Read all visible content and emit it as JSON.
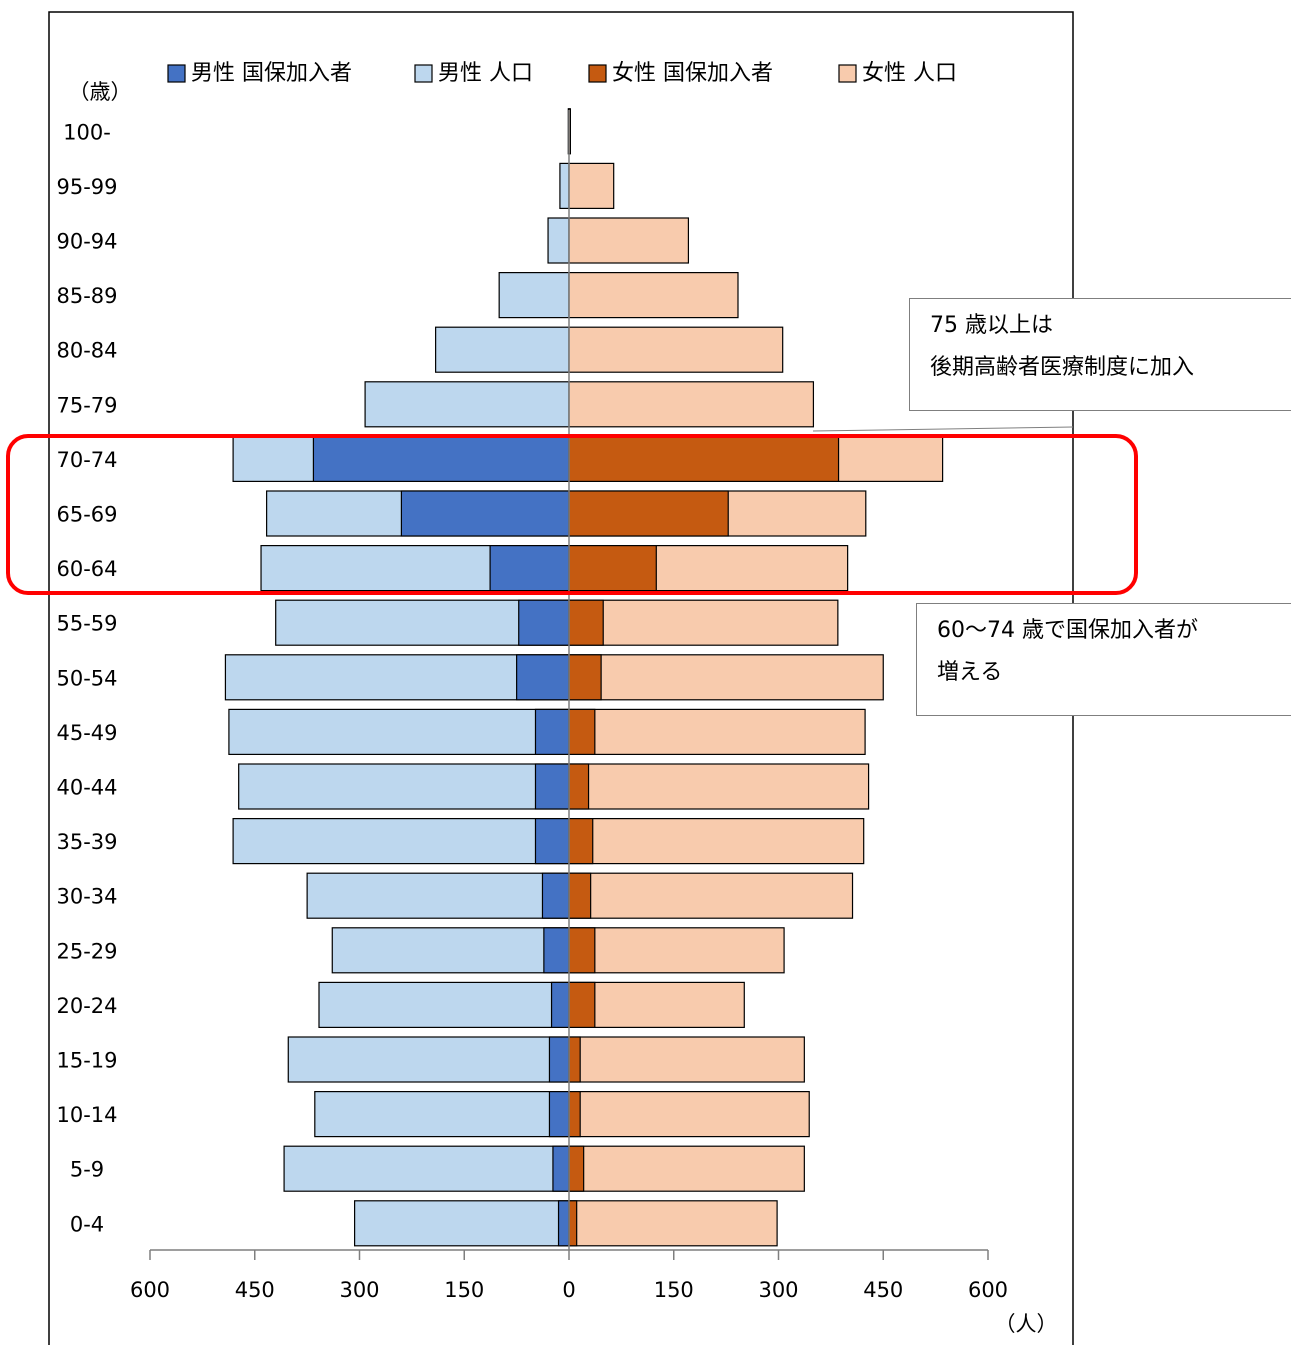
{
  "chart_data": {
    "type": "bar",
    "orientation": "horizontal-population-pyramid",
    "age_unit_label": "（歳）",
    "x_unit_label": "（人）",
    "categories": [
      "100-",
      "95-99",
      "90-94",
      "85-89",
      "80-84",
      "75-79",
      "70-74",
      "65-69",
      "60-64",
      "55-59",
      "50-54",
      "45-49",
      "40-44",
      "35-39",
      "30-34",
      "25-29",
      "20-24",
      "15-19",
      "10-14",
      "5-9",
      "0-4"
    ],
    "x_ticks": [
      "600",
      "450",
      "300",
      "150",
      "0",
      "150",
      "300",
      "450",
      "600"
    ],
    "xlim": [
      -600,
      600
    ],
    "legend_position": "top",
    "series": [
      {
        "name": "男性 国保加入者",
        "side": "left",
        "color": "#4472c4",
        "values": [
          0,
          0,
          0,
          0,
          0,
          0,
          366,
          240,
          113,
          72,
          75,
          48,
          48,
          48,
          38,
          36,
          25,
          28,
          28,
          23,
          15
        ]
      },
      {
        "name": "男性 人口",
        "side": "left",
        "color": "#bdd7ee",
        "values": [
          1,
          13,
          30,
          100,
          191,
          292,
          481,
          433,
          441,
          420,
          492,
          487,
          473,
          481,
          375,
          339,
          358,
          402,
          364,
          408,
          307
        ]
      },
      {
        "name": "女性 国保加入者",
        "side": "right",
        "color": "#c55a11",
        "values": [
          0,
          0,
          0,
          0,
          0,
          0,
          386,
          228,
          125,
          49,
          46,
          37,
          28,
          34,
          31,
          37,
          37,
          16,
          16,
          21,
          11
        ]
      },
      {
        "name": "女性 人口",
        "side": "right",
        "color": "#f8cbad",
        "values": [
          2,
          64,
          171,
          242,
          306,
          350,
          535,
          425,
          399,
          385,
          450,
          424,
          429,
          422,
          406,
          308,
          251,
          337,
          344,
          337,
          298
        ]
      }
    ],
    "highlight_box": {
      "categories": [
        "70-74",
        "65-69",
        "60-64"
      ],
      "color": "#ff0000"
    }
  },
  "callouts": {
    "elderly": {
      "line1": "75 歳以上は",
      "line2": "後期高齢者医療制度に加入"
    },
    "increase": {
      "line1": "60～74 歳で国保加入者が",
      "line2": "増える"
    }
  }
}
